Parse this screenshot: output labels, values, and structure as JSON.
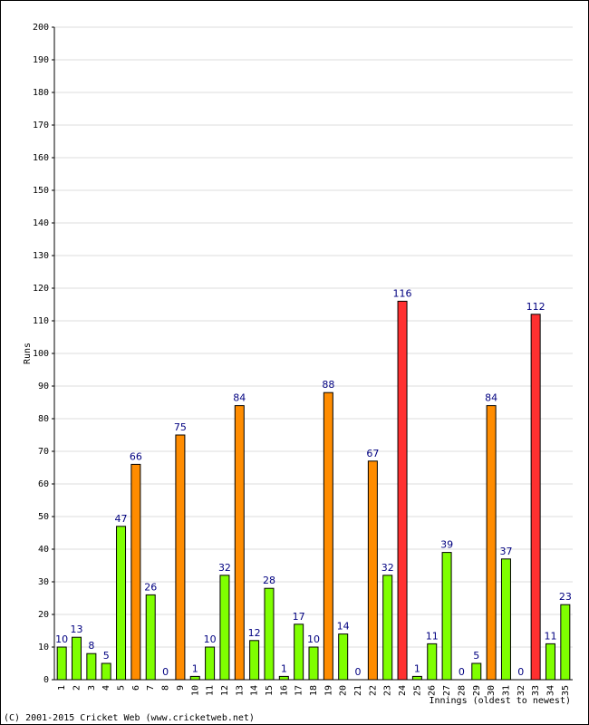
{
  "chart_data": {
    "type": "bar",
    "y_label": "Runs",
    "x_label": "Innings (oldest to newest)",
    "footer": "(C) 2001-2015 Cricket Web (www.cricketweb.net)",
    "categories": [
      "1",
      "2",
      "3",
      "4",
      "5",
      "6",
      "7",
      "8",
      "9",
      "10",
      "11",
      "12",
      "13",
      "14",
      "15",
      "16",
      "17",
      "18",
      "19",
      "20",
      "21",
      "22",
      "23",
      "24",
      "25",
      "26",
      "27",
      "28",
      "29",
      "30",
      "31",
      "32",
      "33",
      "34",
      "35"
    ],
    "values": [
      10,
      13,
      8,
      5,
      47,
      66,
      26,
      0,
      75,
      1,
      10,
      32,
      84,
      12,
      28,
      1,
      17,
      10,
      88,
      14,
      0,
      67,
      32,
      116,
      1,
      11,
      39,
      0,
      5,
      84,
      37,
      0,
      112,
      11,
      23
    ],
    "colors": [
      "#7fff00",
      "#7fff00",
      "#7fff00",
      "#7fff00",
      "#7fff00",
      "#ff8c00",
      "#7fff00",
      "#7fff00",
      "#ff8c00",
      "#7fff00",
      "#7fff00",
      "#7fff00",
      "#ff8c00",
      "#7fff00",
      "#7fff00",
      "#7fff00",
      "#7fff00",
      "#7fff00",
      "#ff8c00",
      "#7fff00",
      "#7fff00",
      "#ff8c00",
      "#7fff00",
      "#ff3030",
      "#7fff00",
      "#7fff00",
      "#7fff00",
      "#7fff00",
      "#7fff00",
      "#ff8c00",
      "#7fff00",
      "#7fff00",
      "#ff3030",
      "#7fff00",
      "#7fff00"
    ],
    "ylim": [
      0,
      200
    ],
    "yticks": [
      0,
      10,
      20,
      30,
      40,
      50,
      60,
      70,
      80,
      90,
      100,
      110,
      120,
      130,
      140,
      150,
      160,
      170,
      180,
      190,
      200
    ],
    "grid": true
  }
}
